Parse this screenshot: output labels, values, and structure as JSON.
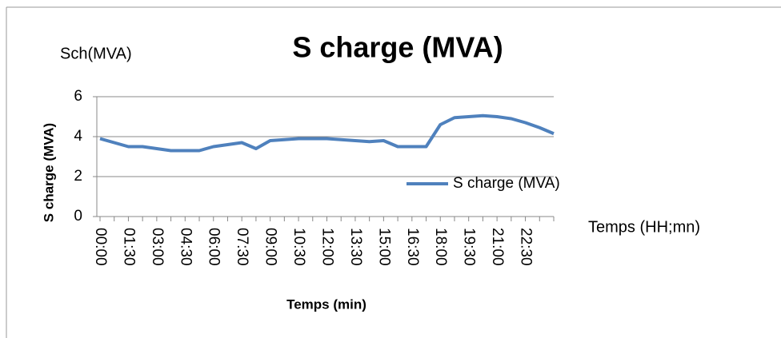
{
  "chart_data": {
    "type": "line",
    "title": "S charge (MVA)",
    "y_unit_label": "Sch(MVA)",
    "y_axis_label": "S charge (MVA)",
    "x_axis_label": "Temps (min)",
    "x_unit_label": "Temps (HH;mn)",
    "categories": [
      "00:00",
      null,
      "01:30",
      null,
      "03:00",
      null,
      "04:30",
      null,
      "06:00",
      null,
      "07:30",
      null,
      "09:00",
      null,
      "10:30",
      null,
      "12:00",
      null,
      "13:30",
      null,
      "15:00",
      null,
      "16:30",
      null,
      "18:00",
      null,
      "19:30",
      null,
      "21:00",
      null,
      "22:30",
      null,
      null
    ],
    "series": [
      {
        "name": "S charge (MVA)",
        "color": "#4f81bd",
        "values": [
          3.9,
          3.7,
          3.5,
          3.5,
          3.4,
          3.3,
          3.3,
          3.3,
          3.5,
          3.6,
          3.7,
          3.4,
          3.8,
          3.85,
          3.9,
          3.9,
          3.9,
          3.85,
          3.8,
          3.75,
          3.8,
          3.5,
          3.5,
          3.5,
          4.6,
          4.95,
          5.0,
          5.05,
          5.0,
          4.9,
          4.7,
          4.45,
          4.15
        ]
      }
    ],
    "ylim": [
      0,
      6
    ],
    "yticks": [
      0,
      2,
      4,
      6
    ],
    "grid": true
  }
}
